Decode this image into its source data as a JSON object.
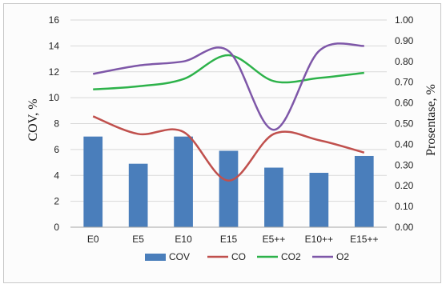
{
  "chart_data": {
    "type": "bar",
    "categories": [
      "E0",
      "E5",
      "E10",
      "E15",
      "E5++",
      "E10++",
      "E15++"
    ],
    "y_left": {
      "label": "COV, %",
      "min": 0,
      "max": 16,
      "step": 2
    },
    "y_right": {
      "label": "Prosentase, %",
      "min": 0,
      "max": 1.0,
      "step": 0.1,
      "decimals": 2
    },
    "grid": true,
    "legend_position": "bottom",
    "series": [
      {
        "name": "COV",
        "kind": "bar",
        "axis": "left",
        "color": "#4a7ebb",
        "values": [
          7.0,
          4.9,
          7.0,
          5.9,
          4.6,
          4.2,
          5.5
        ]
      },
      {
        "name": "CO",
        "kind": "line",
        "axis": "right",
        "color": "#c0504d",
        "values": [
          0.535,
          0.45,
          0.46,
          0.225,
          0.45,
          0.42,
          0.36
        ]
      },
      {
        "name": "CO2",
        "kind": "line",
        "axis": "right",
        "color": "#2db24a",
        "values": [
          0.665,
          0.68,
          0.715,
          0.83,
          0.705,
          0.72,
          0.745
        ]
      },
      {
        "name": "O2",
        "kind": "line",
        "axis": "right",
        "color": "#7e57a8",
        "values": [
          0.74,
          0.78,
          0.8,
          0.85,
          0.47,
          0.85,
          0.875
        ]
      }
    ]
  }
}
